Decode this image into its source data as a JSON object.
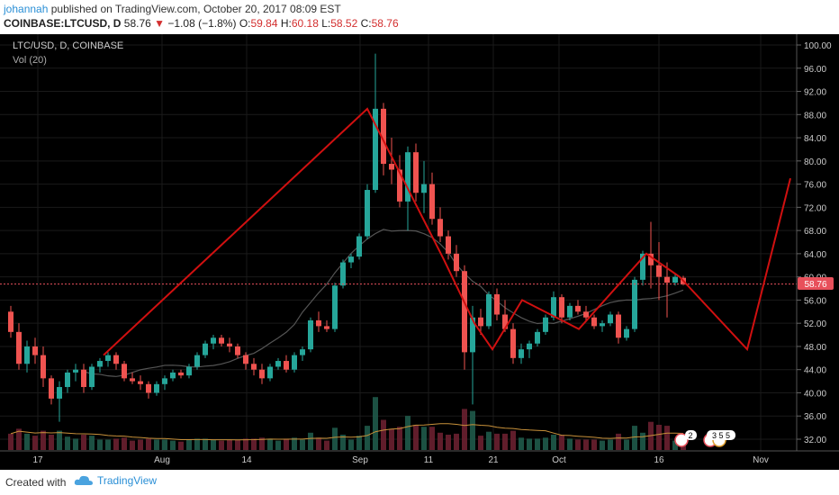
{
  "header": {
    "author": "johannah",
    "published": "published on TradingView.com, October 20, 2017 08:09 EST",
    "symbol": "COINBASE:LTCUSD, D",
    "last": "58.76",
    "change": "−1.08 (−1.8%)",
    "o_label": "O:",
    "o": "59.84",
    "h_label": "H:",
    "h": "60.18",
    "l_label": "L:",
    "l": "58.52",
    "c_label": "C:",
    "c": "58.76"
  },
  "chart": {
    "pane_title": "LTC/USD, D, COINBASE",
    "vol_label": "Vol (20)",
    "last_price_label": "58.76",
    "badge_2": "2",
    "badge_355": "3 5 5",
    "colors": {
      "background": "#000000",
      "up": "#26a69a",
      "down": "#ef5350",
      "trendline": "#d01010",
      "ma": "#555555",
      "vol_ma": "#c8913a",
      "last_price": "#e8505b"
    }
  },
  "chart_data": {
    "type": "candlestick",
    "title": "LTC/USD, D, COINBASE",
    "y_ticks": [
      "100.00",
      "96.00",
      "92.00",
      "88.00",
      "84.00",
      "80.00",
      "76.00",
      "72.00",
      "68.00",
      "64.00",
      "60.00",
      "56.00",
      "52.00",
      "48.00",
      "44.00",
      "40.00",
      "36.00",
      "32.00"
    ],
    "x_ticks": [
      "17",
      "Aug",
      "14",
      "Sep",
      "11",
      "21",
      "Oct",
      "16",
      "Nov"
    ],
    "ylim": [
      29,
      102
    ],
    "last_price": 58.76,
    "grid": true,
    "candles": [
      [
        54.0,
        55.0,
        49.5,
        50.5
      ],
      [
        50.5,
        52.0,
        44.0,
        45.0
      ],
      [
        45.0,
        49.0,
        43.5,
        48.0
      ],
      [
        48.0,
        49.5,
        45.0,
        46.5
      ],
      [
        46.5,
        48.0,
        41.0,
        42.5
      ],
      [
        42.5,
        43.0,
        38.0,
        39.0
      ],
      [
        39.0,
        42.0,
        35.0,
        41.0
      ],
      [
        41.0,
        44.0,
        40.0,
        43.5
      ],
      [
        43.5,
        45.0,
        42.0,
        44.0
      ],
      [
        44.0,
        45.0,
        40.0,
        41.0
      ],
      [
        41.0,
        45.0,
        40.5,
        44.5
      ],
      [
        44.5,
        46.0,
        43.5,
        45.5
      ],
      [
        45.5,
        47.0,
        44.5,
        46.5
      ],
      [
        46.5,
        47.0,
        44.0,
        45.0
      ],
      [
        45.0,
        45.5,
        42.0,
        42.5
      ],
      [
        42.5,
        43.5,
        41.5,
        42.0
      ],
      [
        42.0,
        43.0,
        40.5,
        41.5
      ],
      [
        41.5,
        42.0,
        39.0,
        40.0
      ],
      [
        40.0,
        42.0,
        39.5,
        41.5
      ],
      [
        41.5,
        43.0,
        40.5,
        42.5
      ],
      [
        42.5,
        44.0,
        42.0,
        43.5
      ],
      [
        43.5,
        44.0,
        42.5,
        43.0
      ],
      [
        43.0,
        45.0,
        42.5,
        44.5
      ],
      [
        44.5,
        47.0,
        44.0,
        46.5
      ],
      [
        46.5,
        49.0,
        46.0,
        48.5
      ],
      [
        48.5,
        50.0,
        47.5,
        49.5
      ],
      [
        49.5,
        50.0,
        48.0,
        48.5
      ],
      [
        48.5,
        49.5,
        47.0,
        48.0
      ],
      [
        48.0,
        48.5,
        46.0,
        46.5
      ],
      [
        46.5,
        47.0,
        44.0,
        45.0
      ],
      [
        45.0,
        46.0,
        43.0,
        44.0
      ],
      [
        44.0,
        45.0,
        41.5,
        42.5
      ],
      [
        42.5,
        45.0,
        42.0,
        44.5
      ],
      [
        44.5,
        46.0,
        44.0,
        45.5
      ],
      [
        45.5,
        46.5,
        43.5,
        44.0
      ],
      [
        44.0,
        47.0,
        43.5,
        46.5
      ],
      [
        46.5,
        48.0,
        45.5,
        47.5
      ],
      [
        47.5,
        53.0,
        47.0,
        52.5
      ],
      [
        52.5,
        54.0,
        50.5,
        51.5
      ],
      [
        51.5,
        52.5,
        50.5,
        51.0
      ],
      [
        51.0,
        59.0,
        50.5,
        58.5
      ],
      [
        58.5,
        63.0,
        58.0,
        62.5
      ],
      [
        62.5,
        64.0,
        61.5,
        63.5
      ],
      [
        63.5,
        67.5,
        63.0,
        67.0
      ],
      [
        67.0,
        76.0,
        66.5,
        75.0
      ],
      [
        75.0,
        98.5,
        74.5,
        89.0
      ],
      [
        89.0,
        90.0,
        77.5,
        79.5
      ],
      [
        79.5,
        84.0,
        76.0,
        78.5
      ],
      [
        78.5,
        81.0,
        72.0,
        73.0
      ],
      [
        73.0,
        82.5,
        68.0,
        81.5
      ],
      [
        81.5,
        83.0,
        73.0,
        74.5
      ],
      [
        74.5,
        80.0,
        71.0,
        76.0
      ],
      [
        76.0,
        78.0,
        69.0,
        70.0
      ],
      [
        70.0,
        72.0,
        66.0,
        67.0
      ],
      [
        67.0,
        68.0,
        63.0,
        64.0
      ],
      [
        64.0,
        65.5,
        60.0,
        61.0
      ],
      [
        61.0,
        62.0,
        44.0,
        47.0
      ],
      [
        47.0,
        55.0,
        38.0,
        53.0
      ],
      [
        53.0,
        54.5,
        50.0,
        51.5
      ],
      [
        51.5,
        57.5,
        51.0,
        57.0
      ],
      [
        57.0,
        58.0,
        52.5,
        53.5
      ],
      [
        53.5,
        56.0,
        50.5,
        51.0
      ],
      [
        51.0,
        52.0,
        45.0,
        46.0
      ],
      [
        46.0,
        48.5,
        45.0,
        47.5
      ],
      [
        47.5,
        49.0,
        46.0,
        48.5
      ],
      [
        48.5,
        51.0,
        48.0,
        50.5
      ],
      [
        50.5,
        53.5,
        50.0,
        53.0
      ],
      [
        53.0,
        57.5,
        52.5,
        56.5
      ],
      [
        56.5,
        57.0,
        52.0,
        53.0
      ],
      [
        53.0,
        55.5,
        52.5,
        55.0
      ],
      [
        55.0,
        56.0,
        53.5,
        54.0
      ],
      [
        54.0,
        55.0,
        52.5,
        53.0
      ],
      [
        53.0,
        53.5,
        51.0,
        51.5
      ],
      [
        51.5,
        52.5,
        50.5,
        52.0
      ],
      [
        52.0,
        54.0,
        51.5,
        53.5
      ],
      [
        53.5,
        54.0,
        48.5,
        49.5
      ],
      [
        49.5,
        51.5,
        49.0,
        51.0
      ],
      [
        51.0,
        60.0,
        50.5,
        59.5
      ],
      [
        59.5,
        64.5,
        58.5,
        64.0
      ],
      [
        64.0,
        69.5,
        58.0,
        62.0
      ],
      [
        62.0,
        66.0,
        56.0,
        60.0
      ],
      [
        60.0,
        62.5,
        53.0,
        59.0
      ],
      [
        59.0,
        60.5,
        58.5,
        60.0
      ],
      [
        59.84,
        60.18,
        58.52,
        58.76
      ]
    ]
  }
}
